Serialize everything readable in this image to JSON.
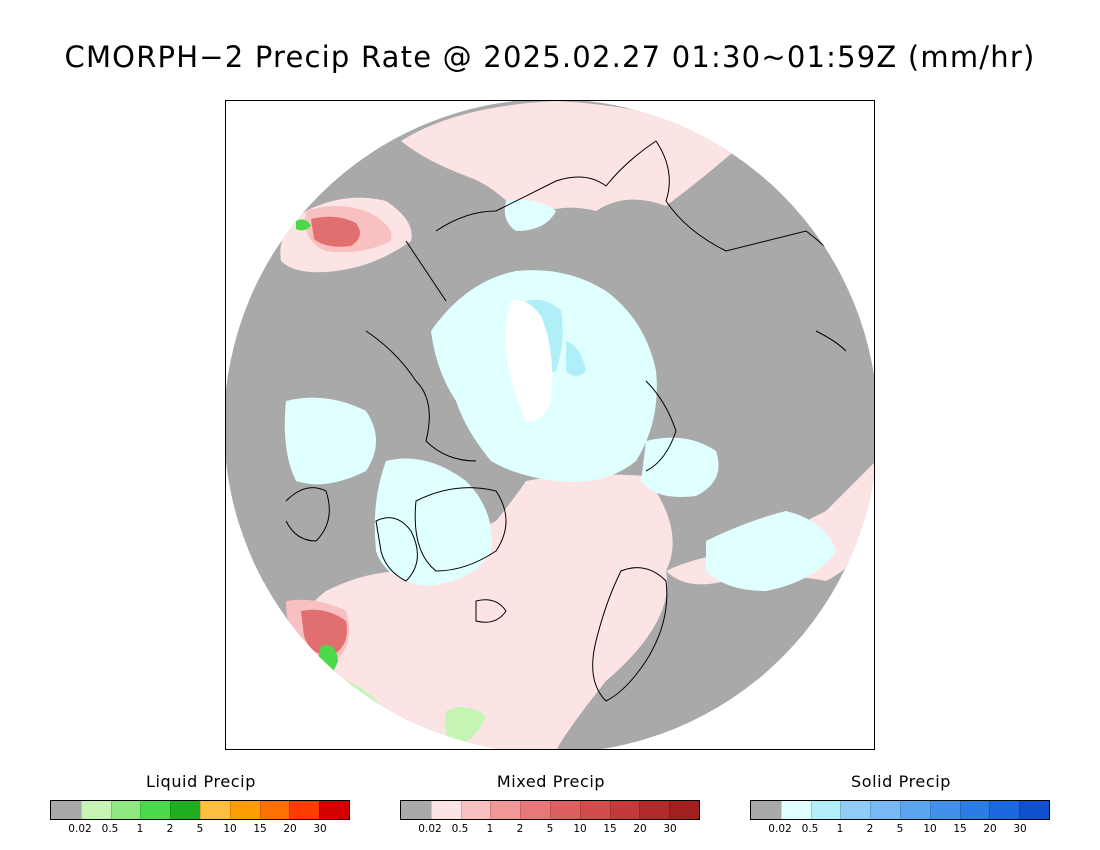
{
  "title": "CMORPH−2 Precip Rate @ 2025.02.27 01:30~01:59Z (mm/hr)",
  "map": {
    "projection": "north-polar-stereographic",
    "background_color": "#a9a9a9",
    "coastline_color": "#000000"
  },
  "legends": [
    {
      "id": "liquid",
      "title": "Liquid Precip",
      "colors": [
        "#a9a9a9",
        "#c4f5b4",
        "#8fe880",
        "#4ad94a",
        "#1fae1f",
        "#ffc040",
        "#ff9e00",
        "#ff7000",
        "#ff3c00",
        "#d40000"
      ],
      "ticks": [
        "0.02",
        "0.5",
        "1",
        "2",
        "5",
        "10",
        "15",
        "20",
        "30"
      ]
    },
    {
      "id": "mixed",
      "title": "Mixed Precip",
      "colors": [
        "#a9a9a9",
        "#fde4e4",
        "#f8c0c0",
        "#f09898",
        "#e87878",
        "#dd6060",
        "#d24c4c",
        "#c43a3a",
        "#b32a2a",
        "#a02020"
      ],
      "ticks": [
        "0.02",
        "0.5",
        "1",
        "2",
        "5",
        "10",
        "15",
        "20",
        "30"
      ]
    },
    {
      "id": "solid",
      "title": "Solid Precip",
      "colors": [
        "#a9a9a9",
        "#e0ffff",
        "#b0eef8",
        "#90ccf8",
        "#78b8f4",
        "#5aa4f0",
        "#4090ec",
        "#2c7ce6",
        "#1c68e0",
        "#1050d0"
      ],
      "ticks": [
        "0.02",
        "0.5",
        "1",
        "2",
        "5",
        "10",
        "15",
        "20",
        "30"
      ]
    }
  ]
}
